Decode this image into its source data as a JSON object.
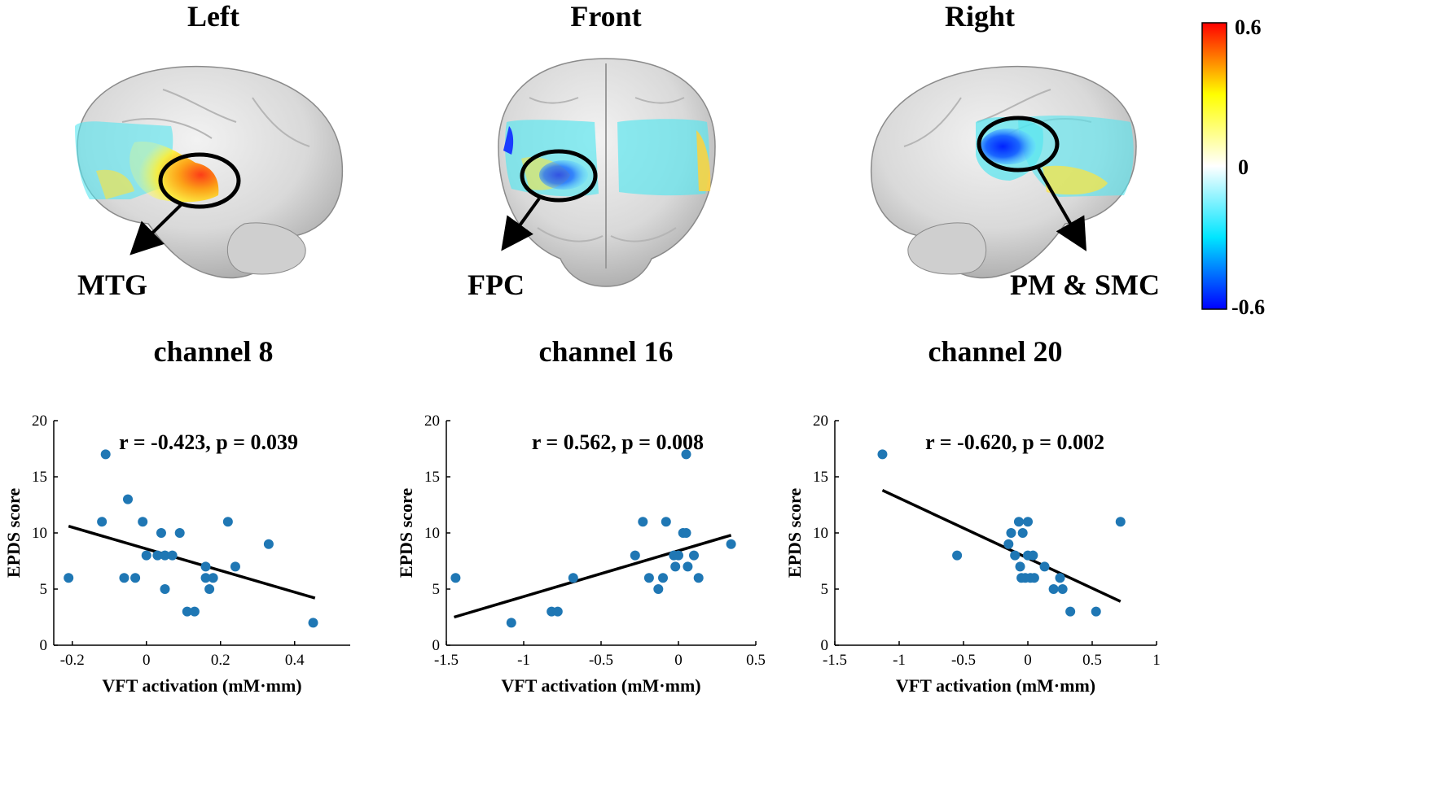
{
  "brain_views": [
    {
      "title": "Left",
      "label": "MTG"
    },
    {
      "title": "Front",
      "label": "FPC"
    },
    {
      "title": "Right",
      "label": "PM & SMC"
    }
  ],
  "colorbar": {
    "max_label": "0.6",
    "mid_label": "0",
    "min_label": "-0.6",
    "colors": [
      "#0000ff",
      "#00e5ff",
      "#ffffff",
      "#ffff00",
      "#ff0000"
    ]
  },
  "chart_data": [
    {
      "type": "scatter",
      "title": "channel 8",
      "xlabel": "VFT activation (mM·mm)",
      "ylabel": "EPDS score",
      "annotation": "r = -0.423, p = 0.039",
      "xlim": [
        -0.25,
        0.55
      ],
      "ylim": [
        0,
        20
      ],
      "xticks": [
        -0.2,
        0,
        0.2,
        0.4
      ],
      "xtick_labels": [
        "-0.2",
        "0",
        "0.2",
        "0.4"
      ],
      "yticks": [
        0,
        5,
        10,
        15,
        20
      ],
      "ytick_labels": [
        "0",
        "5",
        "10",
        "15",
        "20"
      ],
      "points": [
        [
          -0.21,
          6
        ],
        [
          -0.11,
          17
        ],
        [
          -0.12,
          11
        ],
        [
          -0.06,
          6
        ],
        [
          -0.05,
          13
        ],
        [
          -0.03,
          6
        ],
        [
          -0.01,
          11
        ],
        [
          0.0,
          8
        ],
        [
          0.03,
          8
        ],
        [
          0.04,
          10
        ],
        [
          0.05,
          8
        ],
        [
          0.05,
          5
        ],
        [
          0.07,
          8
        ],
        [
          0.09,
          10
        ],
        [
          0.11,
          3
        ],
        [
          0.13,
          3
        ],
        [
          0.16,
          7
        ],
        [
          0.16,
          6
        ],
        [
          0.17,
          5
        ],
        [
          0.18,
          6
        ],
        [
          0.22,
          11
        ],
        [
          0.24,
          7
        ],
        [
          0.33,
          9
        ],
        [
          0.45,
          2
        ]
      ],
      "fit_line": [
        [
          -0.21,
          10.6
        ],
        [
          0.455,
          4.2
        ]
      ],
      "point_color": "#1f77b4"
    },
    {
      "type": "scatter",
      "title": "channel 16",
      "xlabel": "VFT activation (mM·mm)",
      "ylabel": "EPDS score",
      "annotation": "r = 0.562, p = 0.008",
      "xlim": [
        -1.5,
        0.5
      ],
      "ylim": [
        0,
        20
      ],
      "xticks": [
        -1.5,
        -1,
        -0.5,
        0,
        0.5
      ],
      "xtick_labels": [
        "-1.5",
        "-1",
        "-0.5",
        "0",
        "0.5"
      ],
      "yticks": [
        0,
        5,
        10,
        15,
        20
      ],
      "ytick_labels": [
        "0",
        "5",
        "10",
        "15",
        "20"
      ],
      "points": [
        [
          -1.44,
          6
        ],
        [
          -1.08,
          2
        ],
        [
          -0.82,
          3
        ],
        [
          -0.78,
          3
        ],
        [
          -0.68,
          6
        ],
        [
          -0.28,
          8
        ],
        [
          -0.23,
          11
        ],
        [
          -0.19,
          6
        ],
        [
          -0.13,
          5
        ],
        [
          -0.1,
          6
        ],
        [
          -0.08,
          11
        ],
        [
          -0.03,
          8
        ],
        [
          -0.02,
          7
        ],
        [
          0.0,
          8
        ],
        [
          0.03,
          10
        ],
        [
          0.05,
          10
        ],
        [
          0.05,
          17
        ],
        [
          0.06,
          7
        ],
        [
          0.1,
          8
        ],
        [
          0.13,
          6
        ],
        [
          0.34,
          9
        ]
      ],
      "fit_line": [
        [
          -1.45,
          2.5
        ],
        [
          0.34,
          9.8
        ]
      ],
      "point_color": "#1f77b4"
    },
    {
      "type": "scatter",
      "title": "channel 20",
      "xlabel": "VFT activation (mM·mm)",
      "ylabel": "EPDS score",
      "annotation": "r = -0.620, p = 0.002",
      "xlim": [
        -1.5,
        1
      ],
      "ylim": [
        0,
        20
      ],
      "xticks": [
        -1.5,
        -1,
        -0.5,
        0,
        0.5,
        1
      ],
      "xtick_labels": [
        "-1.5",
        "-1",
        "-0.5",
        "0",
        "0.5",
        "1"
      ],
      "yticks": [
        0,
        5,
        10,
        15,
        20
      ],
      "ytick_labels": [
        "0",
        "5",
        "10",
        "15",
        "20"
      ],
      "points": [
        [
          -1.13,
          17
        ],
        [
          -0.55,
          8
        ],
        [
          -0.15,
          9
        ],
        [
          -0.13,
          10
        ],
        [
          -0.1,
          8
        ],
        [
          -0.07,
          11
        ],
        [
          -0.06,
          7
        ],
        [
          -0.05,
          6
        ],
        [
          -0.04,
          10
        ],
        [
          -0.02,
          6
        ],
        [
          0.0,
          8
        ],
        [
          0.0,
          11
        ],
        [
          0.02,
          6
        ],
        [
          0.04,
          8
        ],
        [
          0.05,
          6
        ],
        [
          0.13,
          7
        ],
        [
          0.2,
          5
        ],
        [
          0.25,
          6
        ],
        [
          0.27,
          5
        ],
        [
          0.33,
          3
        ],
        [
          0.53,
          3
        ],
        [
          0.72,
          11
        ]
      ],
      "fit_line": [
        [
          -1.13,
          13.8
        ],
        [
          0.72,
          3.9
        ]
      ],
      "point_color": "#1f77b4"
    }
  ]
}
